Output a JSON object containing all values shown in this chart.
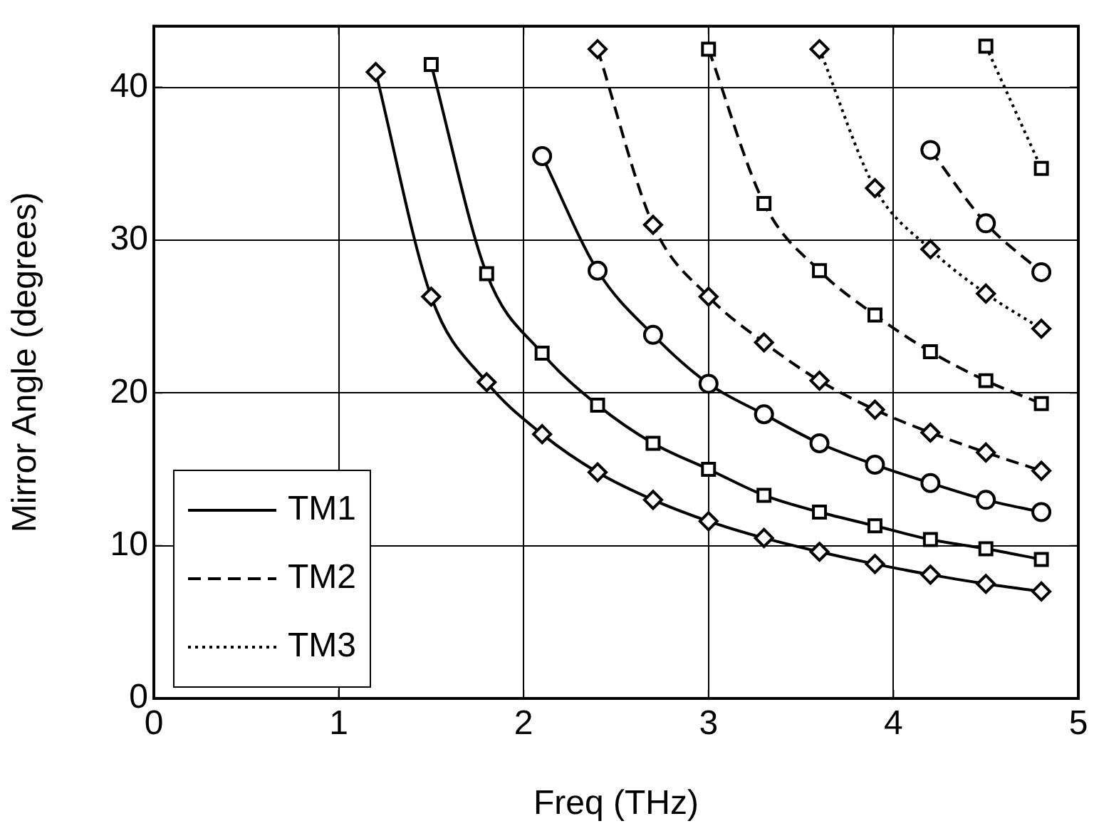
{
  "chart_data": {
    "type": "line",
    "xlabel": "Freq (THz)",
    "ylabel": "Mirror Angle (degrees)",
    "xlim": [
      0,
      5
    ],
    "xticks": [
      0,
      1,
      2,
      3,
      4,
      5
    ],
    "ylim": [
      0,
      44
    ],
    "yticks": [
      0,
      10,
      20,
      30,
      40
    ],
    "grid": true,
    "legend": "bottom left",
    "series": [
      {
        "name": "TM1",
        "color": "#000000",
        "line_style": "solid",
        "marker": "diamond",
        "x": [
          1.2,
          1.5,
          1.8,
          2.1,
          2.4,
          2.7,
          3.0,
          3.3,
          3.6,
          3.9,
          4.2,
          4.5,
          4.8
        ],
        "values": [
          41,
          26.3,
          20.7,
          17.3,
          14.8,
          13.0,
          11.6,
          10.5,
          9.6,
          8.8,
          8.1,
          7.5,
          7.0
        ]
      },
      {
        "color": "#000000",
        "line_style": "solid",
        "marker": "square",
        "x": [
          1.5,
          1.8,
          2.1,
          2.4,
          2.7,
          3.0,
          3.3,
          3.6,
          3.9,
          4.2,
          4.5,
          4.8
        ],
        "values": [
          41.5,
          27.8,
          22.6,
          19.2,
          16.7,
          15.0,
          13.3,
          12.2,
          11.3,
          10.4,
          9.8,
          9.1
        ]
      },
      {
        "color": "#000000",
        "line_style": "solid",
        "marker": "circle",
        "x": [
          2.1,
          2.4,
          2.7,
          3.0,
          3.3,
          3.6,
          3.9,
          4.2,
          4.5,
          4.8
        ],
        "values": [
          35.5,
          28.0,
          23.8,
          20.6,
          18.6,
          16.7,
          15.3,
          14.1,
          13.0,
          12.2
        ]
      },
      {
        "name": "TM2",
        "color": "#000000",
        "line_style": "dashed",
        "marker": "diamond",
        "x": [
          2.4,
          2.7,
          3.0,
          3.3,
          3.6,
          3.9,
          4.2,
          4.5,
          4.8
        ],
        "values": [
          42.5,
          31.0,
          26.3,
          23.3,
          20.8,
          18.9,
          17.4,
          16.1,
          14.9
        ]
      },
      {
        "color": "#000000",
        "line_style": "dashed",
        "marker": "square",
        "x": [
          3.0,
          3.3,
          3.6,
          3.9,
          4.2,
          4.5,
          4.8
        ],
        "values": [
          42.5,
          32.4,
          28.0,
          25.1,
          22.7,
          20.8,
          19.3
        ]
      },
      {
        "color": "#000000",
        "line_style": "dashed",
        "marker": "circle",
        "x": [
          4.2,
          4.5,
          4.8
        ],
        "values": [
          35.9,
          31.1,
          27.9
        ]
      },
      {
        "name": "TM3",
        "color": "#000000",
        "line_style": "dotted",
        "marker": "diamond",
        "x": [
          3.6,
          3.9,
          4.2,
          4.5,
          4.8
        ],
        "values": [
          42.5,
          33.4,
          29.4,
          26.5,
          24.2
        ]
      },
      {
        "color": "#000000",
        "line_style": "dotted",
        "marker": "square",
        "x": [
          4.5,
          4.8
        ],
        "values": [
          42.7,
          34.7
        ]
      }
    ]
  }
}
